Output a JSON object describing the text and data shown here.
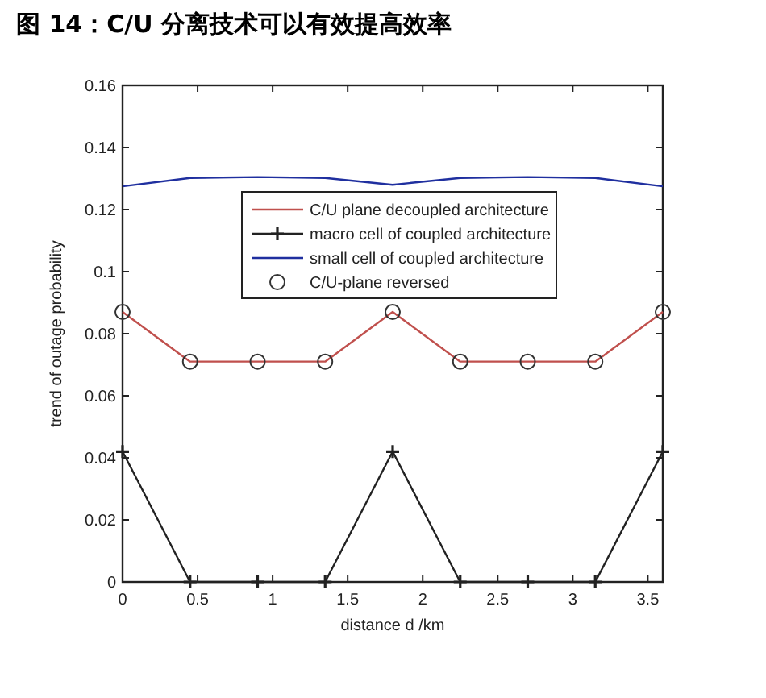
{
  "chart_data": {
    "type": "line",
    "title": "图 14：C/U 分离技术可以有效提高效率",
    "xlabel": "distance d  /km",
    "ylabel": "trend of outage probability",
    "x": [
      0,
      0.45,
      0.9,
      1.35,
      1.8,
      2.25,
      2.7,
      3.15,
      3.6
    ],
    "series": [
      {
        "name": "C/U plane decoupled architecture",
        "color": "#c0504d",
        "values": [
          0.087,
          0.071,
          0.071,
          0.071,
          0.087,
          0.071,
          0.071,
          0.071,
          0.087
        ]
      },
      {
        "name": "macro cell of coupled architecture",
        "color": "#222222",
        "marker": "cross",
        "values": [
          0.042,
          0,
          0,
          0,
          0.042,
          0,
          0,
          0,
          0.042
        ]
      },
      {
        "name": "small cell of coupled architecture",
        "color": "#1f2f9f",
        "values": [
          0.1275,
          0.1302,
          0.1305,
          0.1302,
          0.128,
          0.1302,
          0.1305,
          0.1302,
          0.1275
        ]
      },
      {
        "name": "C/U-plane reversed",
        "type": "scatter",
        "color": "#333333",
        "marker": "circle",
        "values": [
          0.087,
          0.071,
          0.071,
          0.071,
          0.087,
          0.071,
          0.071,
          0.071,
          0.087
        ]
      }
    ],
    "xlim": [
      0,
      3.6
    ],
    "ylim": [
      0,
      0.16
    ],
    "xticks": [
      0,
      0.5,
      1,
      1.5,
      2,
      2.5,
      3,
      3.5
    ],
    "yticks": [
      0,
      0.02,
      0.04,
      0.06,
      0.08,
      0.1,
      0.12,
      0.14,
      0.16
    ],
    "legend": "top right",
    "grid": false
  }
}
